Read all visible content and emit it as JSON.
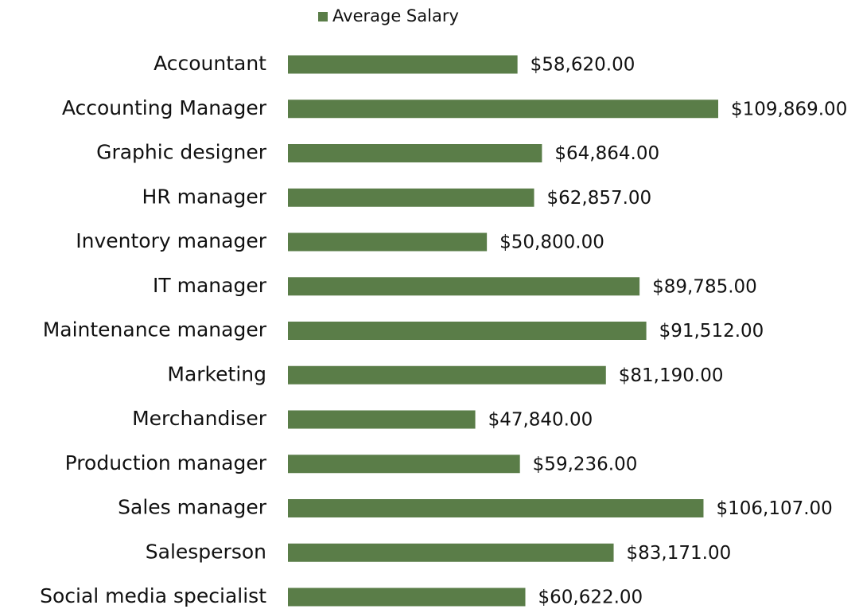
{
  "chart_data": {
    "type": "bar",
    "orientation": "horizontal",
    "categories": [
      "Accountant",
      "Accounting Manager",
      "Graphic designer",
      "HR manager",
      "Inventory manager",
      "IT manager",
      "Maintenance manager",
      "Marketing",
      "Merchandiser",
      "Production manager",
      "Sales manager",
      "Salesperson",
      "Social media specialist"
    ],
    "series": [
      {
        "name": "Average Salary",
        "color": "#5a7d48",
        "values": [
          58620,
          109869,
          64864,
          62857,
          50800,
          89785,
          91512,
          81190,
          47840,
          59236,
          106107,
          83171,
          60622
        ],
        "value_labels": [
          "$58,620.00",
          "$109,869.00",
          "$64,864.00",
          "$62,857.00",
          "$50,800.00",
          "$89,785.00",
          "$91,512.00",
          "$81,190.00",
          "$47,840.00",
          "$59,236.00",
          "$106,107.00",
          "$83,171.00",
          "$60,622.00"
        ]
      }
    ],
    "legend": "top"
  }
}
